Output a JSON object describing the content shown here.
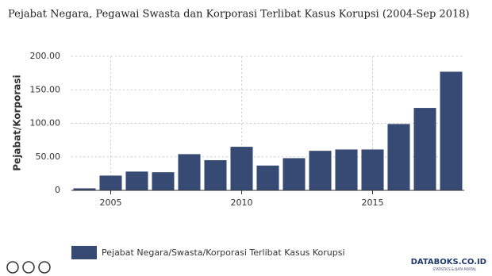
{
  "chart_data": {
    "type": "bar",
    "title": "Pejabat Negara, Pegawai Swasta dan Korporasi Terlibat Kasus Korupsi (2004-Sep 2018)",
    "y_label": "Pejabat/Korporasi",
    "x": [
      2004,
      2005,
      2006,
      2007,
      2008,
      2009,
      2010,
      2011,
      2012,
      2013,
      2014,
      2015,
      2016,
      2017,
      2018
    ],
    "series": [
      {
        "name": "Pejabat Negara/Swasta/Korporasi Terlibat Kasus Korupsi",
        "color": "#374a73",
        "values": [
          3,
          22,
          28,
          27,
          54,
          45,
          65,
          37,
          48,
          59,
          61,
          61,
          99,
          123,
          177
        ]
      }
    ],
    "xlim": [
      2003.5,
      2018.5
    ],
    "xticks": [
      2005,
      2010,
      2015
    ],
    "ylim": [
      0,
      200
    ],
    "yticks": [
      0,
      {
        "value": 50,
        "label": "50.00"
      },
      {
        "value": 100,
        "label": "100.00"
      },
      {
        "value": 150,
        "label": "150.00"
      },
      {
        "value": 200,
        "label": "200.00"
      }
    ],
    "grid": true,
    "source": "DATABOKS.CO.ID",
    "source_subtitle": "STATISTICS & DATA PORTAL"
  }
}
